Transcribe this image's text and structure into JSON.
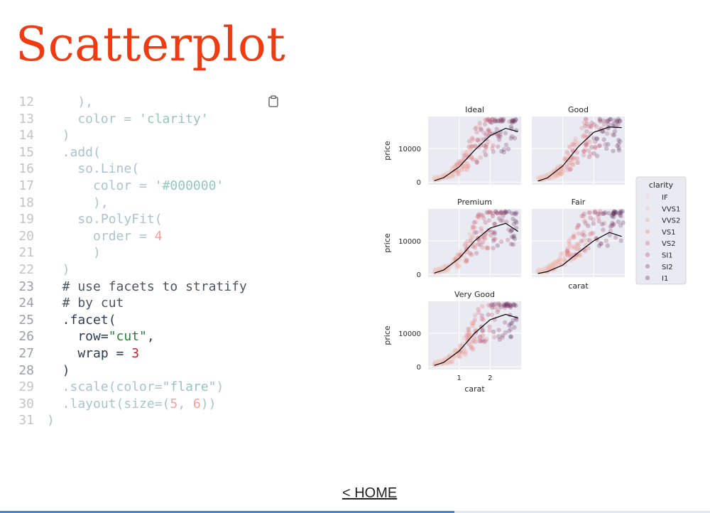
{
  "page_title": "Scatterplot",
  "home_link": "< HOME",
  "progress": 0.64,
  "code_lines": [
    {
      "n": "12",
      "dim": true,
      "parts": [
        {
          "t": "    ),",
          "c": "tx"
        }
      ]
    },
    {
      "n": "13",
      "dim": true,
      "parts": [
        {
          "t": "    color = ",
          "c": "tx"
        },
        {
          "t": "'clarity'",
          "c": "str"
        }
      ]
    },
    {
      "n": "14",
      "dim": true,
      "parts": [
        {
          "t": "  )",
          "c": "tx"
        }
      ]
    },
    {
      "n": "15",
      "dim": true,
      "parts": [
        {
          "t": "  .add(",
          "c": "tx"
        }
      ]
    },
    {
      "n": "16",
      "dim": true,
      "parts": [
        {
          "t": "    so.Line(",
          "c": "tx"
        }
      ]
    },
    {
      "n": "17",
      "dim": true,
      "parts": [
        {
          "t": "      color = ",
          "c": "tx"
        },
        {
          "t": "'#000000'",
          "c": "str"
        }
      ]
    },
    {
      "n": "18",
      "dim": true,
      "parts": [
        {
          "t": "      ),",
          "c": "tx"
        }
      ]
    },
    {
      "n": "19",
      "dim": true,
      "parts": [
        {
          "t": "    so.PolyFit(",
          "c": "tx"
        }
      ]
    },
    {
      "n": "20",
      "dim": true,
      "parts": [
        {
          "t": "      order = ",
          "c": "tx"
        },
        {
          "t": "4",
          "c": "num"
        }
      ]
    },
    {
      "n": "21",
      "dim": true,
      "parts": [
        {
          "t": "      )",
          "c": "tx"
        }
      ]
    },
    {
      "n": "22",
      "dim": true,
      "parts": [
        {
          "t": "  )",
          "c": "tx"
        }
      ]
    },
    {
      "n": "23",
      "dim": false,
      "parts": [
        {
          "t": "  # use facets to stratify",
          "c": "com"
        }
      ]
    },
    {
      "n": "24",
      "dim": false,
      "parts": [
        {
          "t": "  # by cut",
          "c": "com"
        }
      ]
    },
    {
      "n": "25",
      "dim": false,
      "parts": [
        {
          "t": "  .facet(",
          "c": "tx"
        }
      ]
    },
    {
      "n": "26",
      "dim": false,
      "parts": [
        {
          "t": "    row=",
          "c": "tx"
        },
        {
          "t": "\"cut\"",
          "c": "str"
        },
        {
          "t": ",",
          "c": "tx"
        }
      ]
    },
    {
      "n": "27",
      "dim": false,
      "parts": [
        {
          "t": "    wrap = ",
          "c": "tx"
        },
        {
          "t": "3",
          "c": "num"
        }
      ]
    },
    {
      "n": "28",
      "dim": false,
      "parts": [
        {
          "t": "  )",
          "c": "tx"
        }
      ]
    },
    {
      "n": "29",
      "dim": true,
      "parts": [
        {
          "t": "  .scale(color=",
          "c": "tx"
        },
        {
          "t": "\"flare\"",
          "c": "str"
        },
        {
          "t": ")",
          "c": "tx"
        }
      ]
    },
    {
      "n": "30",
      "dim": true,
      "parts": [
        {
          "t": "  .layout(size=(",
          "c": "tx"
        },
        {
          "t": "5",
          "c": "num"
        },
        {
          "t": ", ",
          "c": "tx"
        },
        {
          "t": "6",
          "c": "num"
        },
        {
          "t": "))",
          "c": "tx"
        }
      ]
    },
    {
      "n": "31",
      "dim": true,
      "parts": [
        {
          "t": ")",
          "c": "tx"
        }
      ]
    }
  ],
  "chart_data": {
    "type": "scatter",
    "x_label": "carat",
    "y_label": "price",
    "x_ticks": [
      1,
      2
    ],
    "y_ticks": [
      0,
      10000
    ],
    "xlim": [
      0,
      3
    ],
    "ylim": [
      -800,
      19500
    ],
    "grid": true,
    "legend_position": "right",
    "legend": {
      "title": "clarity",
      "entries": [
        "IF",
        "VVS1",
        "VVS2",
        "VS1",
        "VS2",
        "SI1",
        "SI2",
        "I1"
      ],
      "colors": [
        "#f1d2cd",
        "#ecbdb5",
        "#e8a79c",
        "#e17d7b",
        "#cf5d6f",
        "#a84c6d",
        "#7c3e67",
        "#5c3360"
      ]
    },
    "trend_line_color": "#000000",
    "facets": [
      {
        "title": "Ideal",
        "fit": [
          [
            0.2,
            400
          ],
          [
            0.5,
            1300
          ],
          [
            1.0,
            4500
          ],
          [
            1.5,
            9500
          ],
          [
            2.0,
            13800
          ],
          [
            2.5,
            16000
          ],
          [
            2.9,
            15000
          ]
        ]
      },
      {
        "title": "Good",
        "fit": [
          [
            0.2,
            300
          ],
          [
            0.5,
            1200
          ],
          [
            1.0,
            4800
          ],
          [
            1.5,
            10500
          ],
          [
            2.0,
            14800
          ],
          [
            2.5,
            16400
          ],
          [
            2.9,
            16200
          ]
        ]
      },
      {
        "title": "Premium",
        "fit": [
          [
            0.2,
            400
          ],
          [
            0.5,
            1300
          ],
          [
            1.0,
            4800
          ],
          [
            1.5,
            10000
          ],
          [
            2.0,
            13800
          ],
          [
            2.5,
            15200
          ],
          [
            2.9,
            12800
          ]
        ]
      },
      {
        "title": "Fair",
        "fit": [
          [
            0.2,
            300
          ],
          [
            0.5,
            800
          ],
          [
            1.0,
            2800
          ],
          [
            1.5,
            6500
          ],
          [
            2.0,
            10000
          ],
          [
            2.5,
            12500
          ],
          [
            2.9,
            11300
          ]
        ]
      },
      {
        "title": "Very Good",
        "fit": [
          [
            0.2,
            400
          ],
          [
            0.5,
            1300
          ],
          [
            1.0,
            4700
          ],
          [
            1.5,
            10000
          ],
          [
            2.0,
            14000
          ],
          [
            2.5,
            15600
          ],
          [
            2.9,
            14500
          ]
        ]
      }
    ]
  }
}
